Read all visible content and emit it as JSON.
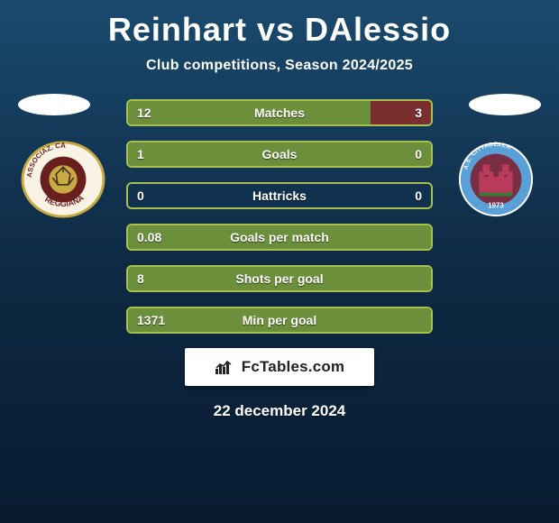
{
  "title": {
    "player1": "Reinhart",
    "vs": "vs",
    "player2": "DAlessio"
  },
  "subtitle": "Club competitions, Season 2024/2025",
  "date": "22 december 2024",
  "attribution": "FcTables.com",
  "colors": {
    "fill_left": "#6b8f3a",
    "fill_right": "#7a2e2e",
    "bar_border": "#a8c14e"
  },
  "stats": [
    {
      "label": "Matches",
      "left_val": "12",
      "right_val": "3",
      "left_pct": 80,
      "right_pct": 20
    },
    {
      "label": "Goals",
      "left_val": "1",
      "right_val": "0",
      "left_pct": 100,
      "right_pct": 0
    },
    {
      "label": "Hattricks",
      "left_val": "0",
      "right_val": "0",
      "left_pct": 0,
      "right_pct": 0
    },
    {
      "label": "Goals per match",
      "left_val": "0.08",
      "right_val": "",
      "left_pct": 100,
      "right_pct": 0
    },
    {
      "label": "Shots per goal",
      "left_val": "8",
      "right_val": "",
      "left_pct": 100,
      "right_pct": 0
    },
    {
      "label": "Min per goal",
      "left_val": "1371",
      "right_val": "",
      "left_pct": 100,
      "right_pct": 0
    }
  ],
  "badges": {
    "left": {
      "name": "reggiana-crest",
      "ring_fill": "#f9f3e6",
      "ring_stroke": "#c9a941",
      "inner_fill": "#6a1f1f",
      "ball_fill": "#c9a941",
      "ring_text_top": "ASSOCIAZ.  CALCIO",
      "ring_text_bottom": "REGGIANA"
    },
    "right": {
      "name": "cittadella-crest",
      "outer_fill": "#ffffff",
      "ring_fill": "#5aa0d8",
      "inner_fill": "#7a2e44",
      "wall_fill": "#b93a5a",
      "ring_text_top": "A.S. CITTADELLA",
      "year": "1973"
    }
  }
}
